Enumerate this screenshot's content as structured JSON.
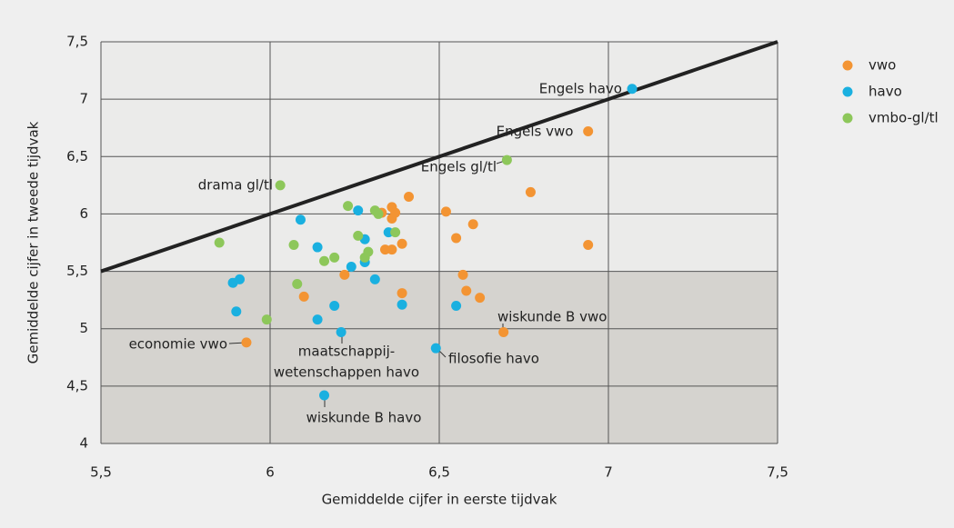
{
  "chart_data": {
    "type": "scatter",
    "x_label": "Gemiddelde cijfer in eerste tijdvak",
    "y_label": "Gemiddelde cijfer in tweede tijdvak",
    "xlim": [
      5.5,
      7.5
    ],
    "ylim": [
      4,
      7.5
    ],
    "xticks": [
      {
        "value": 5.5,
        "label": "5,5"
      },
      6,
      {
        "value": 6.5,
        "label": "6,5"
      },
      7,
      {
        "value": 7.5,
        "label": "7,5"
      }
    ],
    "yticks": [
      4,
      {
        "value": 4.5,
        "label": "4,5"
      },
      5,
      {
        "value": 5.5,
        "label": "5,5"
      },
      6,
      {
        "value": 6.5,
        "label": "6,5"
      },
      7,
      {
        "value": 7.5,
        "label": "7,5"
      }
    ],
    "grid": true,
    "shade_below": 5.5,
    "diagonal": true,
    "legend": "right",
    "series": [
      {
        "name": "vwo",
        "color": "#f39433",
        "x": [
          5.93,
          6.1,
          6.22,
          6.33,
          6.36,
          6.36,
          6.37,
          6.41,
          6.39,
          6.36,
          6.34,
          6.39,
          6.52,
          6.55,
          6.6,
          6.57,
          6.58,
          6.62,
          6.69,
          6.77,
          6.94,
          6.94
        ],
        "values": [
          4.88,
          5.28,
          5.47,
          6.01,
          6.06,
          5.96,
          6.01,
          6.15,
          5.74,
          5.69,
          5.69,
          5.31,
          6.02,
          5.79,
          5.91,
          5.47,
          5.33,
          5.27,
          4.97,
          6.19,
          6.72,
          5.73
        ]
      },
      {
        "name": "havo",
        "color": "#1ab0e0",
        "x": [
          5.9,
          5.89,
          5.91,
          6.09,
          6.14,
          6.14,
          6.19,
          6.21,
          6.24,
          6.26,
          6.28,
          6.28,
          6.31,
          6.35,
          6.39,
          6.49,
          6.55,
          6.16,
          7.07
        ],
        "values": [
          5.15,
          5.4,
          5.43,
          5.95,
          5.71,
          5.08,
          5.2,
          4.97,
          5.54,
          6.03,
          5.78,
          5.58,
          5.43,
          5.84,
          5.21,
          4.83,
          5.2,
          4.42,
          7.09
        ]
      },
      {
        "name": "vmbo-gl/tl",
        "color": "#8dc75a",
        "x": [
          5.85,
          5.99,
          6.03,
          6.07,
          6.08,
          6.16,
          6.19,
          6.23,
          6.26,
          6.28,
          6.29,
          6.31,
          6.32,
          6.37,
          6.7
        ],
        "values": [
          5.75,
          5.08,
          6.25,
          5.73,
          5.39,
          5.59,
          5.62,
          6.07,
          5.81,
          5.62,
          5.67,
          6.03,
          6.0,
          5.84,
          6.47
        ]
      }
    ],
    "annotations": [
      "economie vwo",
      "maatschappij-",
      "wetenschappen havo",
      "wiskunde B havo",
      "filosofie havo",
      "wiskunde B vwo",
      "drama gl/tl",
      "Engels gl/tl",
      "Engels vwo",
      "Engels havo"
    ]
  }
}
